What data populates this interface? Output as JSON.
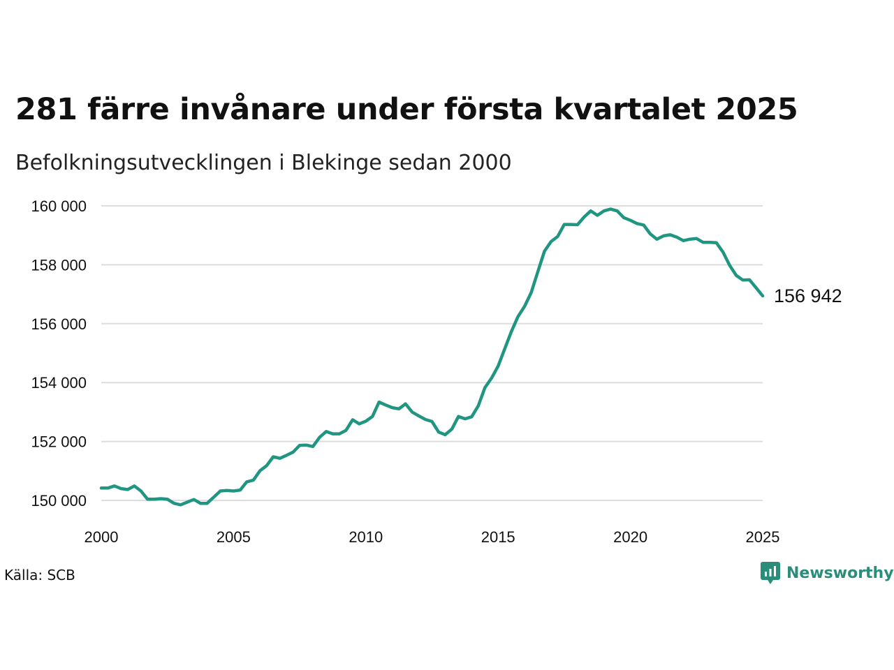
{
  "header": {
    "title": "281 färre invånare under första kvartalet 2025",
    "subtitle": "Befolkningsutvecklingen i Blekinge sedan 2000"
  },
  "footer": {
    "source": "Källa: SCB",
    "brand_name": "Newsworthy",
    "brand_icon": "newsworthy-logo-icon"
  },
  "colors": {
    "line": "#1f9582",
    "grid": "#dddddd",
    "brand": "#2a8d7a"
  },
  "chart_data": {
    "type": "line",
    "title": "281 färre invånare under första kvartalet 2025",
    "subtitle": "Befolkningsutvecklingen i Blekinge sedan 2000",
    "xlabel": "",
    "ylabel": "",
    "xlim": [
      2000,
      2025
    ],
    "ylim": [
      149500,
      160300
    ],
    "x_ticks": [
      2000,
      2005,
      2010,
      2015,
      2020,
      2025
    ],
    "x_tick_labels": [
      "2000",
      "2005",
      "2010",
      "2015",
      "2020",
      "2025"
    ],
    "y_ticks": [
      150000,
      152000,
      154000,
      156000,
      158000,
      160000
    ],
    "y_tick_labels": [
      "150 000",
      "152 000",
      "154 000",
      "156 000",
      "158 000",
      "160 000"
    ],
    "grid": "horizontal",
    "end_label": "156 942",
    "series": [
      {
        "x": [
          2000.0,
          2000.25,
          2000.5,
          2000.75,
          2001.0,
          2001.25,
          2001.5,
          2001.75,
          2002.0,
          2002.25,
          2002.5,
          2002.75,
          2003.0,
          2003.25,
          2003.5,
          2003.75,
          2004.0,
          2004.25,
          2004.5,
          2004.75,
          2005.0,
          2005.25,
          2005.5,
          2005.75,
          2006.0,
          2006.25,
          2006.5,
          2006.75,
          2007.0,
          2007.25,
          2007.5,
          2007.75,
          2008.0,
          2008.25,
          2008.5,
          2008.75,
          2009.0,
          2009.25,
          2009.5,
          2009.75,
          2010.0,
          2010.25,
          2010.5,
          2010.75,
          2011.0,
          2011.25,
          2011.5,
          2011.75,
          2012.0,
          2012.25,
          2012.5,
          2012.75,
          2013.0,
          2013.25,
          2013.5,
          2013.75,
          2014.0,
          2014.25,
          2014.5,
          2014.75,
          2015.0,
          2015.25,
          2015.5,
          2015.75,
          2016.0,
          2016.25,
          2016.5,
          2016.75,
          2017.0,
          2017.25,
          2017.5,
          2017.75,
          2018.0,
          2018.25,
          2018.5,
          2018.75,
          2019.0,
          2019.25,
          2019.5,
          2019.75,
          2020.0,
          2020.25,
          2020.5,
          2020.75,
          2021.0,
          2021.25,
          2021.5,
          2021.75,
          2022.0,
          2022.25,
          2022.5,
          2022.75,
          2023.0,
          2023.25,
          2023.5,
          2023.75,
          2024.0,
          2024.25,
          2024.5,
          2024.75,
          2025.0
        ],
        "y": [
          150420,
          150420,
          150490,
          150400,
          150370,
          150490,
          150320,
          150040,
          150040,
          150060,
          150040,
          149900,
          149850,
          149940,
          150030,
          149900,
          149900,
          150110,
          150320,
          150340,
          150320,
          150350,
          150630,
          150690,
          151010,
          151180,
          151480,
          151430,
          151530,
          151640,
          151870,
          151880,
          151830,
          152140,
          152340,
          152260,
          152260,
          152380,
          152740,
          152600,
          152690,
          152850,
          153340,
          153240,
          153150,
          153110,
          153280,
          153000,
          152870,
          152750,
          152680,
          152320,
          152230,
          152420,
          152850,
          152770,
          152840,
          153210,
          153830,
          154150,
          154560,
          155150,
          155730,
          156240,
          156590,
          157060,
          157760,
          158460,
          158790,
          158960,
          159370,
          159370,
          159360,
          159620,
          159830,
          159680,
          159830,
          159890,
          159830,
          159600,
          159510,
          159400,
          159350,
          159050,
          158870,
          158980,
          159020,
          158940,
          158820,
          158870,
          158890,
          158760,
          158760,
          158750,
          158430,
          157980,
          157640,
          157480,
          157490,
          157220,
          156942
        ]
      }
    ]
  }
}
